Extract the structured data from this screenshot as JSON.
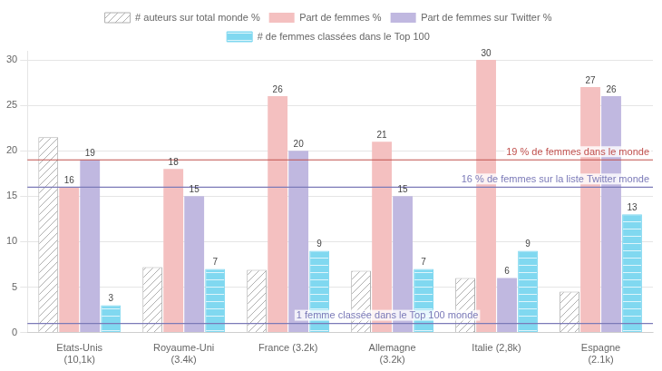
{
  "chart_data": {
    "type": "bar",
    "categories": [
      "Etats-Unis\n(10,1k)",
      "Royaume-Uni\n(3.4k)",
      "France (3.2k)",
      "Allemagne\n(3.2k)",
      "Italie (2,8k)",
      "Espagne\n(2.1k)"
    ],
    "series": [
      {
        "name": "# auteurs sur total monde %",
        "color": "#b0b0b0",
        "values": [
          21.5,
          7.2,
          6.9,
          6.8,
          6.0,
          4.5
        ]
      },
      {
        "name": "Part de femmes %",
        "color": "#f4c0c0",
        "values": [
          16,
          18,
          26,
          21,
          30,
          27
        ],
        "data_labels": true
      },
      {
        "name": "Part de femmes sur Twitter %",
        "color": "#c0b8e0",
        "values": [
          19,
          15,
          20,
          15,
          6,
          26
        ],
        "data_labels": true
      },
      {
        "name": "# de femmes classées dans le Top 100",
        "color": "#80d8f0",
        "values": [
          3,
          7,
          9,
          7,
          9,
          13
        ],
        "data_labels": true
      }
    ],
    "annotations": [
      {
        "text": "19 % de femmes dans le monde",
        "y": 19,
        "color": "#c0504d"
      },
      {
        "text": "16 % de femmes sur la liste Twitter monde",
        "y": 16,
        "color": "#7b7ab8"
      },
      {
        "text": "1 femme classée dans le Top 100 monde",
        "y": 1,
        "color": "#7b7ab8"
      }
    ],
    "ylim": [
      0,
      31
    ],
    "yticks": [
      0,
      5,
      10,
      15,
      20,
      25,
      30
    ],
    "grid": true,
    "legend": "top"
  }
}
